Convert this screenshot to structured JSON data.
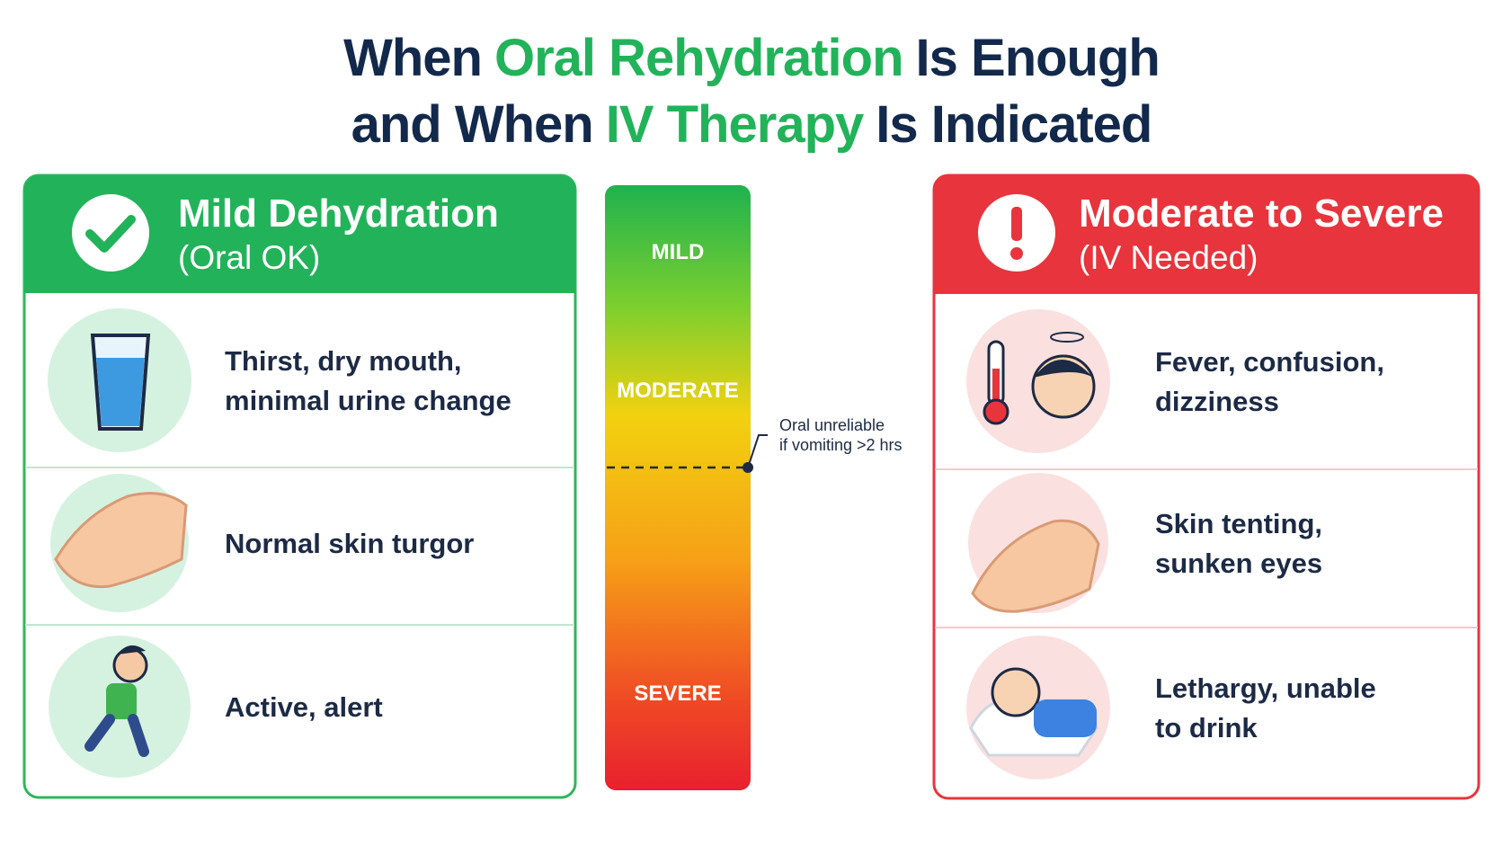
{
  "title": {
    "line1": {
      "before": "When",
      "highlight": "Oral Rehydration",
      "after": "Is Enough"
    },
    "line2": {
      "before": "and When",
      "highlight": "IV Therapy",
      "after": "Is Indicated"
    }
  },
  "left_panel": {
    "heading": "Mild Dehydration",
    "subheading": "(Oral OK)",
    "items": [
      [
        "Thirst, dry mouth,",
        "minimal urine change"
      ],
      [
        "Normal skin turgor"
      ],
      [
        "Active, alert"
      ]
    ]
  },
  "scale": {
    "labels": [
      "MILD",
      "MODERATE",
      "SEVERE"
    ],
    "annotation": [
      "Oral unreliable",
      "if vomiting >2 hrs"
    ]
  },
  "right_panel": {
    "heading": "Moderate to Severe",
    "subheading": "(IV Needed)",
    "items": [
      [
        "Fever, confusion,",
        "dizziness"
      ],
      [
        "Skin tenting,",
        "sunken eyes"
      ],
      [
        "Lethargy, unable",
        "to drink"
      ]
    ]
  }
}
